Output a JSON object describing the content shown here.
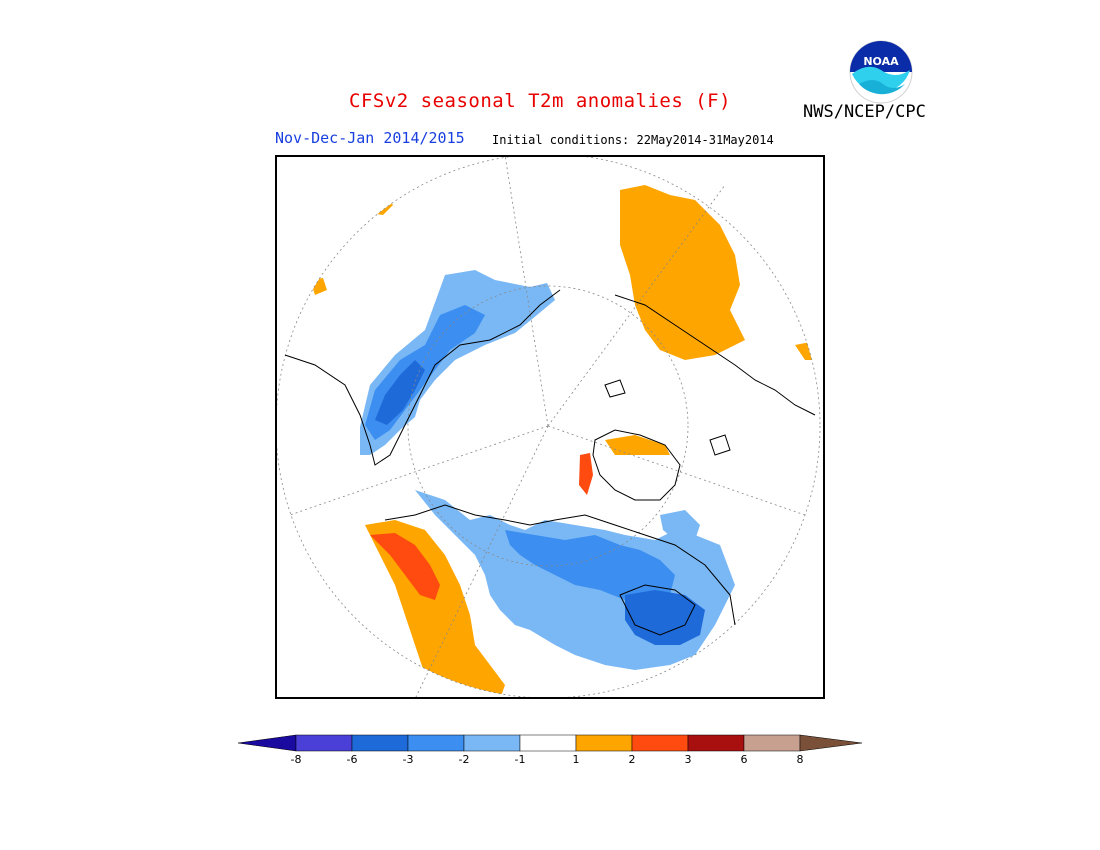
{
  "title": "CFSv2 seasonal T2m anomalies (F)",
  "organization": "NWS/NCEP/CPC",
  "logo_text": "NOAA",
  "period": "Nov-Dec-Jan 2014/2015",
  "initial_conditions": "Initial conditions: 22May2014-31May2014",
  "colors": {
    "title": "#e80000",
    "period": "#1a3fe0",
    "cold_lt_-3": "#1e6ad8",
    "cold_-3_-2": "#3c8ef0",
    "cold_-2_-1": "#7ab8f5",
    "warm_1_2": "#ffa500",
    "warm_2_3": "#ff4a10",
    "warm_3_6": "#a81010",
    "land_outline": "#000000"
  },
  "legend": {
    "bins": [
      {
        "color": "#1a0aa0",
        "range": "< -8"
      },
      {
        "color": "#4a40d8",
        "range": "-8 to -6"
      },
      {
        "color": "#1e6ad8",
        "range": "-6 to -3"
      },
      {
        "color": "#3c8ef0",
        "range": "-3 to -2"
      },
      {
        "color": "#7ab8f5",
        "range": "-2 to -1"
      },
      {
        "color": "#ffffff",
        "range": "-1 to 1"
      },
      {
        "color": "#ffa500",
        "range": "1 to 2"
      },
      {
        "color": "#ff4a10",
        "range": "2 to 3"
      },
      {
        "color": "#a81010",
        "range": "3 to 6"
      },
      {
        "color": "#c8a090",
        "range": "6 to 8"
      },
      {
        "color": "#7a5038",
        "range": "> 8"
      }
    ],
    "tick_labels": [
      "-8",
      "-6",
      "-3",
      "-2",
      "-1",
      "1",
      "2",
      "3",
      "6",
      "8"
    ]
  }
}
